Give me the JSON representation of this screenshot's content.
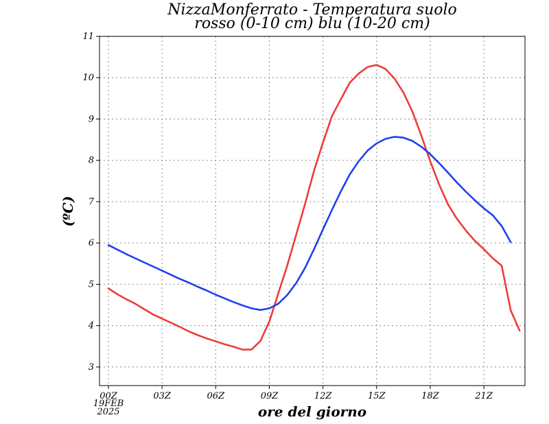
{
  "chart_data": {
    "type": "line",
    "title_line1": "NizzaMonferrato - Temperatura suolo",
    "title_line2": "rosso (0-10 cm) blu (10-20 cm)",
    "xlabel": "ore del giorno",
    "ylabel": "(ºC)",
    "date_line1": "19FEB",
    "date_line2": "2025",
    "x_ticks": [
      {
        "hour": 0,
        "label": "00Z"
      },
      {
        "hour": 3,
        "label": "03Z"
      },
      {
        "hour": 6,
        "label": "06Z"
      },
      {
        "hour": 9,
        "label": "09Z"
      },
      {
        "hour": 12,
        "label": "12Z"
      },
      {
        "hour": 15,
        "label": "15Z"
      },
      {
        "hour": 18,
        "label": "18Z"
      },
      {
        "hour": 21,
        "label": "21Z"
      }
    ],
    "y_ticks": [
      3,
      4,
      5,
      6,
      7,
      8,
      9,
      10,
      11
    ],
    "xlim": [
      -0.5,
      23.3
    ],
    "ylim": [
      2.55,
      11.0
    ],
    "grid": true,
    "series": [
      {
        "color": "#ee3b3b",
        "points": [
          [
            0,
            4.9
          ],
          [
            0.5,
            4.76
          ],
          [
            1,
            4.64
          ],
          [
            1.5,
            4.53
          ],
          [
            2,
            4.4
          ],
          [
            2.5,
            4.27
          ],
          [
            3,
            4.17
          ],
          [
            3.5,
            4.07
          ],
          [
            4,
            3.97
          ],
          [
            4.5,
            3.86
          ],
          [
            5,
            3.77
          ],
          [
            5.5,
            3.69
          ],
          [
            6,
            3.62
          ],
          [
            6.5,
            3.55
          ],
          [
            7,
            3.49
          ],
          [
            7.5,
            3.42
          ],
          [
            8,
            3.42
          ],
          [
            8.5,
            3.63
          ],
          [
            9,
            4.1
          ],
          [
            9.5,
            4.78
          ],
          [
            10,
            5.45
          ],
          [
            10.5,
            6.2
          ],
          [
            11,
            6.95
          ],
          [
            11.5,
            7.75
          ],
          [
            12,
            8.43
          ],
          [
            12.5,
            9.07
          ],
          [
            13,
            9.48
          ],
          [
            13.5,
            9.88
          ],
          [
            14,
            10.1
          ],
          [
            14.5,
            10.26
          ],
          [
            15,
            10.31
          ],
          [
            15.5,
            10.21
          ],
          [
            16,
            9.98
          ],
          [
            16.5,
            9.64
          ],
          [
            17,
            9.18
          ],
          [
            17.5,
            8.6
          ],
          [
            18,
            7.98
          ],
          [
            18.5,
            7.41
          ],
          [
            19,
            6.93
          ],
          [
            19.5,
            6.58
          ],
          [
            20,
            6.3
          ],
          [
            20.5,
            6.05
          ],
          [
            21,
            5.85
          ],
          [
            21.5,
            5.63
          ],
          [
            22,
            5.45
          ],
          [
            22.5,
            4.37
          ],
          [
            23,
            3.88
          ]
        ]
      },
      {
        "color": "#2040ee",
        "points": [
          [
            0,
            5.95
          ],
          [
            0.5,
            5.84
          ],
          [
            1,
            5.73
          ],
          [
            1.5,
            5.63
          ],
          [
            2,
            5.53
          ],
          [
            2.5,
            5.43
          ],
          [
            3,
            5.33
          ],
          [
            3.5,
            5.23
          ],
          [
            4,
            5.13
          ],
          [
            4.5,
            5.04
          ],
          [
            5,
            4.94
          ],
          [
            5.5,
            4.85
          ],
          [
            6,
            4.75
          ],
          [
            6.5,
            4.66
          ],
          [
            7,
            4.57
          ],
          [
            7.5,
            4.49
          ],
          [
            8,
            4.42
          ],
          [
            8.5,
            4.38
          ],
          [
            9,
            4.42
          ],
          [
            9.5,
            4.53
          ],
          [
            10,
            4.74
          ],
          [
            10.5,
            5.03
          ],
          [
            11,
            5.4
          ],
          [
            11.5,
            5.85
          ],
          [
            12,
            6.33
          ],
          [
            12.5,
            6.8
          ],
          [
            13,
            7.25
          ],
          [
            13.5,
            7.66
          ],
          [
            14,
            7.98
          ],
          [
            14.5,
            8.24
          ],
          [
            15,
            8.41
          ],
          [
            15.5,
            8.52
          ],
          [
            16,
            8.57
          ],
          [
            16.5,
            8.55
          ],
          [
            17,
            8.47
          ],
          [
            17.5,
            8.33
          ],
          [
            18,
            8.15
          ],
          [
            18.5,
            7.93
          ],
          [
            19,
            7.7
          ],
          [
            19.5,
            7.46
          ],
          [
            20,
            7.24
          ],
          [
            20.5,
            7.03
          ],
          [
            21,
            6.84
          ],
          [
            21.5,
            6.67
          ],
          [
            22,
            6.41
          ],
          [
            22.5,
            6.02
          ]
        ]
      }
    ]
  }
}
